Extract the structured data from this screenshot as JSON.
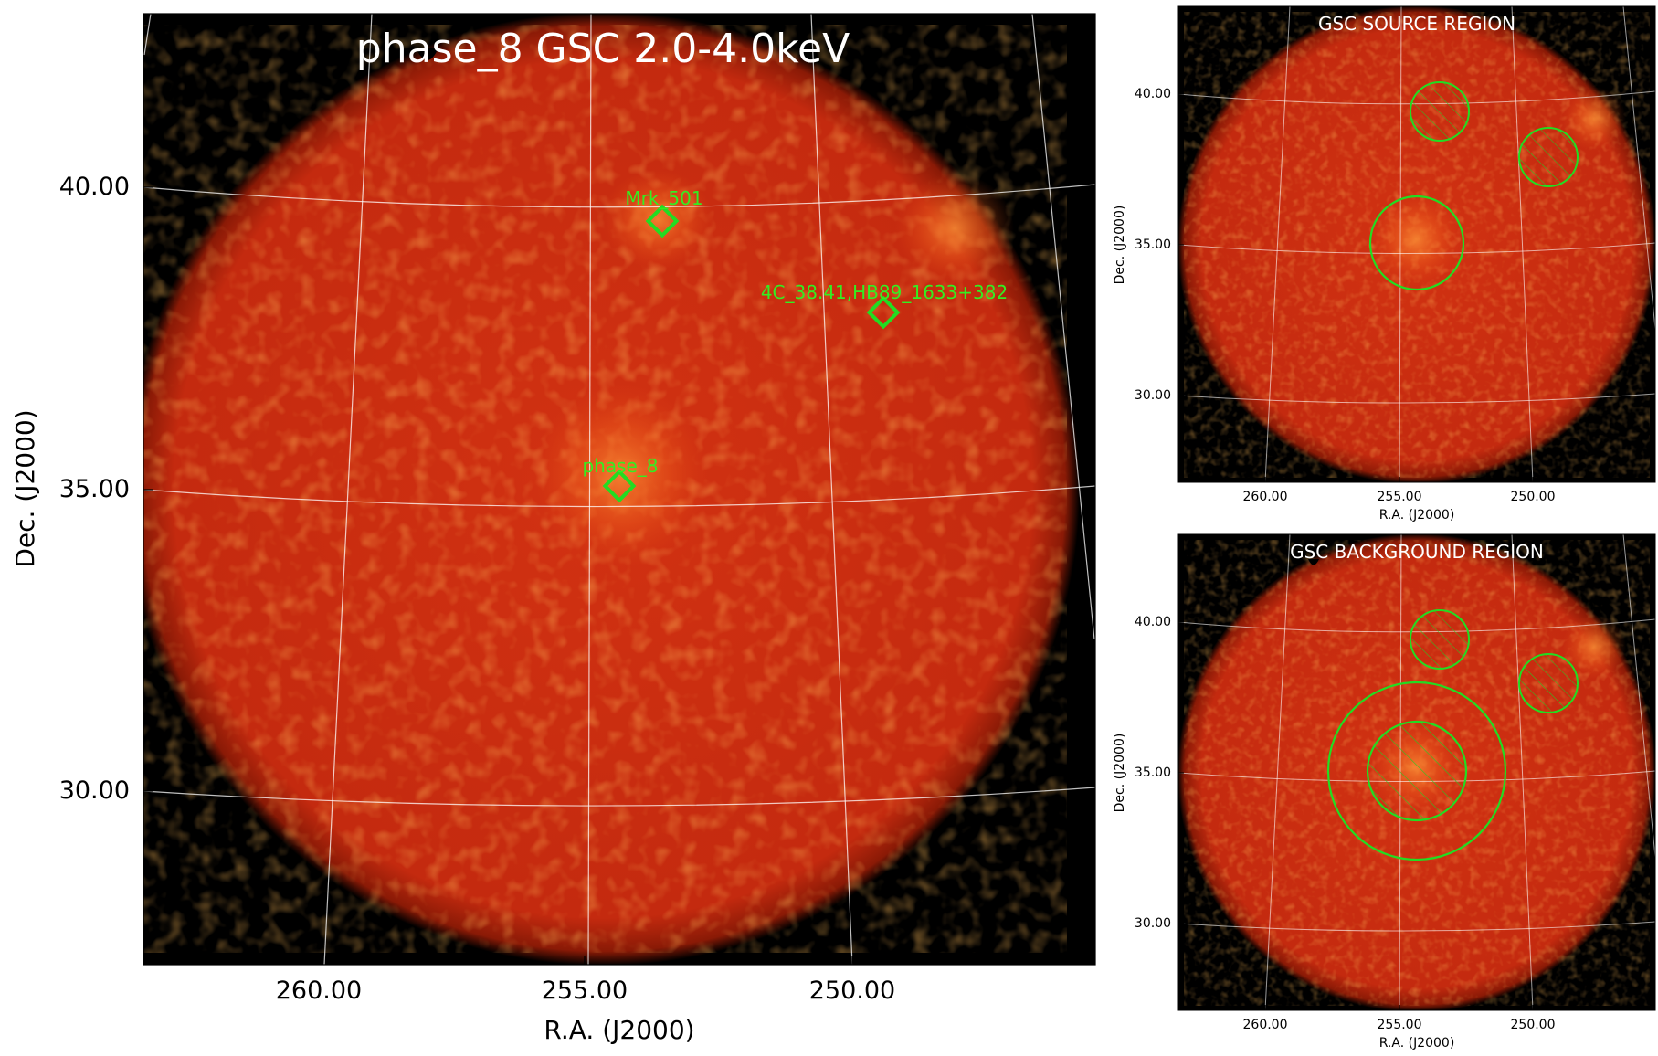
{
  "main_panel": {
    "title": "phase_8 GSC 2.0-4.0keV",
    "xlabel": "R.A. (J2000)",
    "ylabel": "Dec. (J2000)",
    "x_ticks": [
      "260.00",
      "255.00",
      "250.00"
    ],
    "y_ticks": [
      "40.00",
      "35.00",
      "30.00"
    ],
    "sources": [
      {
        "label": "Mrk_501",
        "ra": 253.47,
        "dec": 39.76
      },
      {
        "label": "4C_38.41,HB89_1633+382",
        "ra": 248.81,
        "dec": 38.13
      },
      {
        "label": "phase_8",
        "ra": 254.4,
        "dec": 35.0
      }
    ]
  },
  "source_panel": {
    "title": "GSC SOURCE REGION",
    "xlabel": "R.A. (J2000)",
    "ylabel": "Dec. (J2000)",
    "x_ticks": [
      "260.00",
      "255.00",
      "250.00"
    ],
    "y_ticks": [
      "40.00",
      "35.00",
      "30.00"
    ]
  },
  "background_panel": {
    "title": "GSC BACKGROUND REGION",
    "xlabel": "R.A. (J2000)",
    "ylabel": "Dec. (J2000)",
    "x_ticks": [
      "260.00",
      "255.00",
      "250.00"
    ],
    "y_ticks": [
      "40.00",
      "35.00",
      "30.00"
    ]
  },
  "colors": {
    "region": "#22dd22",
    "label": "#33ee22",
    "grid": "#ffffff",
    "sky": "#c82b10",
    "outside": "#000000"
  }
}
